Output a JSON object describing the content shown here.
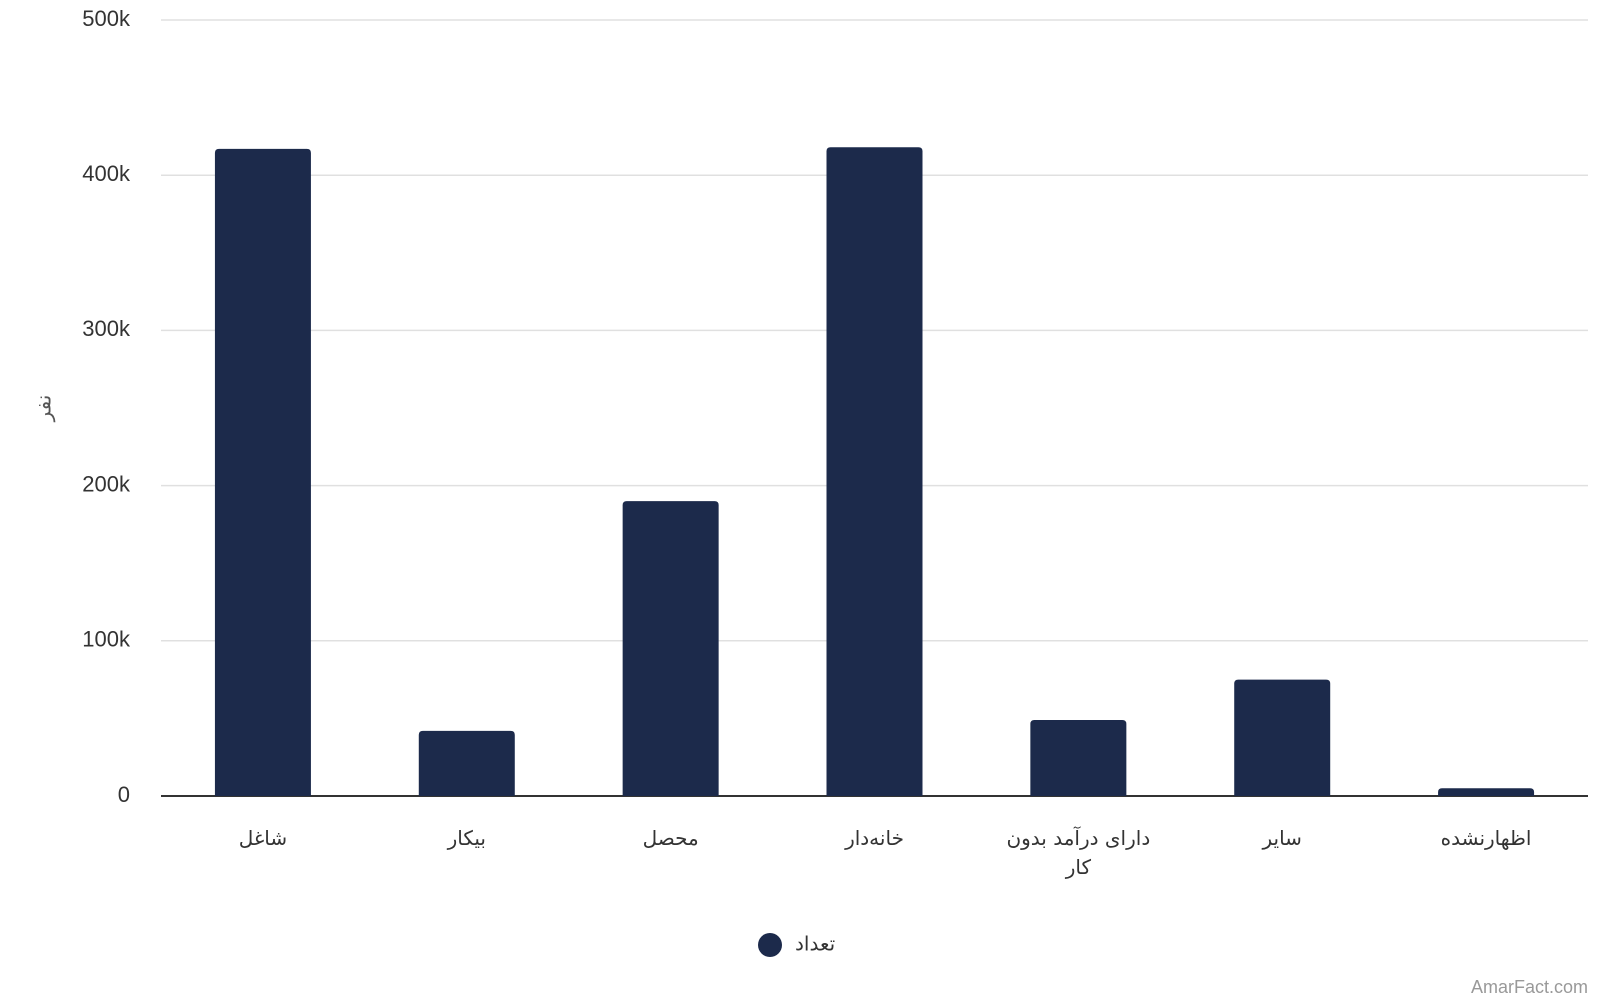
{
  "chart_data": {
    "type": "bar",
    "y_label": "نفر",
    "categories": [
      "شاغل",
      "بیکار",
      "محصل",
      "خانه‌دار",
      "دارای درآمد بدون کار",
      "سایر",
      "اظهارنشده"
    ],
    "series": [
      {
        "name": "تعداد",
        "color": "#1c2a4b",
        "values": [
          417000,
          42000,
          190000,
          418000,
          49000,
          75000,
          5000
        ]
      }
    ],
    "ylim": [
      0,
      500000
    ],
    "yticks": [
      0,
      {
        "value": 100000,
        "label": "100k"
      },
      {
        "value": 200000,
        "label": "200k"
      },
      {
        "value": 300000,
        "label": "300k"
      },
      {
        "value": 400000,
        "label": "400k"
      },
      {
        "value": 500000,
        "label": "500k"
      }
    ],
    "grid": true,
    "legend": "bottom",
    "credit": "AmarFact.com"
  }
}
